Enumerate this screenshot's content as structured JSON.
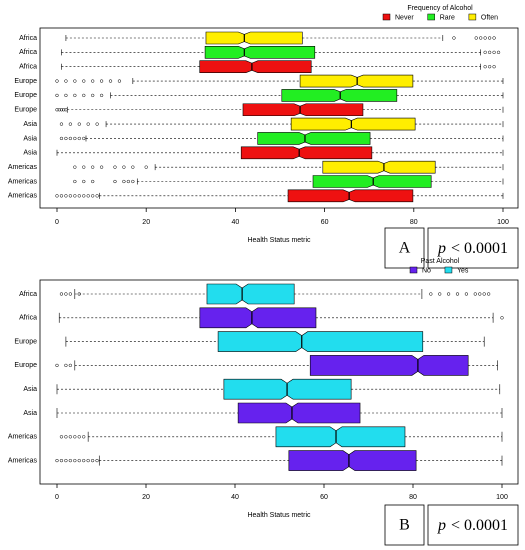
{
  "chart_data": [
    {
      "type": "boxplot",
      "orientation": "horizontal",
      "notched": true,
      "xlabel": "Health Status metric",
      "legend_title": "Frequency of Alcohol",
      "legend_position": "top-right",
      "annotation_letter": "A",
      "p_symbol": "p",
      "p_text": "< 0.0001",
      "categories": [
        "Africa",
        "Europe",
        "Asia",
        "Americas"
      ],
      "xlim": [
        0,
        100
      ],
      "xticks": [
        0,
        20,
        40,
        60,
        80,
        100
      ],
      "series": [
        {
          "name": "Never",
          "color": "#ee1111",
          "min": [
            1,
            2.3,
            0,
            9.5
          ],
          "q1": [
            32,
            41.7,
            41.3,
            51.8
          ],
          "median": [
            43.7,
            54.5,
            54.3,
            65.5
          ],
          "q3": [
            57,
            68.6,
            70.6,
            79.8
          ],
          "max": [
            95,
            100,
            100,
            100
          ],
          "outliers": [
            [
              96,
              97,
              98
            ],
            [
              0,
              0.5,
              1,
              1.5,
              2
            ],
            [],
            [
              0,
              1,
              2,
              3,
              4,
              5,
              6,
              7,
              8,
              9
            ]
          ]
        },
        {
          "name": "Rare",
          "color": "#22ee22",
          "min": [
            1,
            12,
            6.5,
            18
          ],
          "q1": [
            33.2,
            50.4,
            45,
            57.4
          ],
          "median": [
            42,
            63.5,
            55.6,
            70.9
          ],
          "q3": [
            57.8,
            76.2,
            70.2,
            83.9
          ],
          "max": [
            95,
            100,
            100,
            100
          ],
          "outliers": [
            [
              96,
              97,
              98,
              99
            ],
            [
              0,
              2,
              4,
              6,
              8,
              10
            ],
            [
              1,
              2,
              3,
              4,
              5,
              6
            ],
            [
              4,
              6,
              8,
              13,
              15,
              16,
              17
            ]
          ]
        },
        {
          "name": "Often",
          "color": "#ffee00",
          "min": [
            2,
            17,
            11,
            22
          ],
          "q1": [
            33.4,
            54.5,
            52.5,
            59.6
          ],
          "median": [
            42,
            67.3,
            66,
            73.3
          ],
          "q3": [
            55,
            79.8,
            80.3,
            84.8
          ],
          "max": [
            86.5,
            100,
            100,
            100
          ],
          "outliers": [
            [
              89,
              94,
              95,
              96,
              97,
              98
            ],
            [
              0,
              2,
              4,
              6,
              8,
              10,
              12,
              14
            ],
            [
              1,
              3,
              5,
              7,
              9
            ],
            [
              4,
              6,
              8,
              10,
              13,
              15,
              17,
              20
            ]
          ]
        }
      ]
    },
    {
      "type": "boxplot",
      "orientation": "horizontal",
      "notched": true,
      "xlabel": "Health Status metric",
      "legend_title": "Past Alcohol",
      "legend_position": "top-right",
      "annotation_letter": "B",
      "p_symbol": "p",
      "p_text": "< 0.0001",
      "categories": [
        "Africa",
        "Europe",
        "Asia",
        "Americas"
      ],
      "xlim": [
        0,
        100
      ],
      "xticks": [
        0,
        20,
        40,
        60,
        80,
        100
      ],
      "series": [
        {
          "name": "No",
          "color": "#6622ee",
          "min": [
            0.5,
            4,
            0,
            9.5
          ],
          "q1": [
            32.1,
            56.9,
            40.7,
            52.1
          ],
          "median": [
            43.8,
            81.1,
            52.8,
            65.6
          ],
          "q3": [
            58.2,
            92.4,
            68.1,
            80.7
          ],
          "max": [
            98,
            99,
            100,
            100
          ],
          "outliers": [
            [
              100
            ],
            [
              0,
              2,
              3
            ],
            [],
            [
              0,
              1,
              2,
              3,
              4,
              5,
              6,
              7,
              8,
              9
            ]
          ]
        },
        {
          "name": "Yes",
          "color": "#22ddee",
          "min": [
            4,
            2,
            0,
            7
          ],
          "q1": [
            33.7,
            36.2,
            37.5,
            49.2
          ],
          "median": [
            41.6,
            55,
            51.7,
            62.7
          ],
          "q3": [
            53.3,
            82.2,
            66.1,
            78.2
          ],
          "max": [
            82,
            96,
            99.5,
            100
          ],
          "outliers": [
            [
              1,
              2,
              3,
              5,
              84,
              86,
              88,
              90,
              92,
              94,
              95,
              96,
              97
            ],
            [],
            [],
            [
              1,
              2,
              3,
              4,
              5,
              6
            ]
          ]
        }
      ]
    }
  ]
}
